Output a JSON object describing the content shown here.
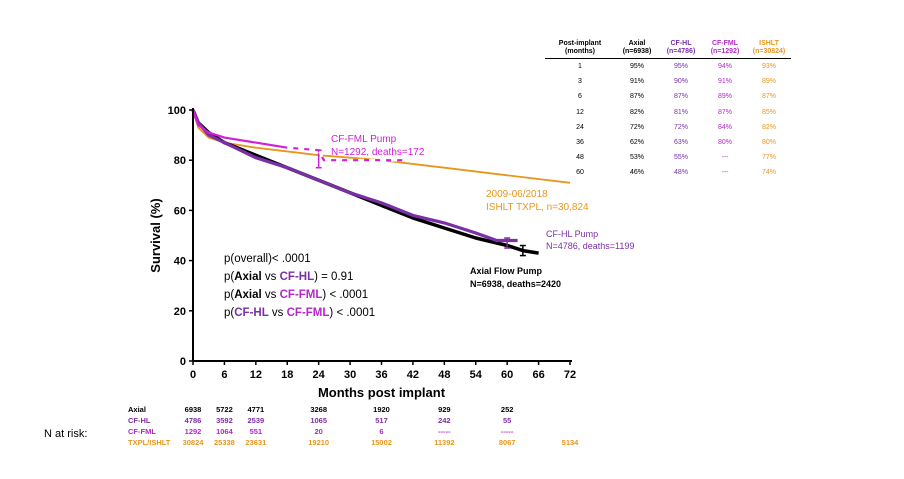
{
  "chart_data": {
    "type": "line",
    "title": "",
    "xlabel": "Months post implant",
    "ylabel": "Survival (%)",
    "xlim": [
      0,
      72
    ],
    "ylim": [
      0,
      100
    ],
    "xticks": [
      0,
      6,
      12,
      18,
      24,
      30,
      36,
      42,
      48,
      54,
      60,
      66,
      72
    ],
    "yticks": [
      0,
      20,
      40,
      60,
      80,
      100
    ],
    "series": [
      {
        "name": "Axial Flow Pump",
        "color": "#000000",
        "x": [
          0,
          1,
          3,
          6,
          12,
          18,
          24,
          30,
          36,
          42,
          48,
          54,
          60,
          63,
          66
        ],
        "y": [
          100,
          95,
          91,
          87,
          82,
          77,
          72,
          67,
          62,
          57,
          53,
          49,
          46,
          44,
          43
        ]
      },
      {
        "name": "CF-HL Pump",
        "color": "#7B2FA6",
        "x": [
          0,
          1,
          3,
          6,
          12,
          18,
          24,
          30,
          36,
          42,
          48,
          54,
          58,
          62
        ],
        "y": [
          100,
          95,
          90,
          87,
          81,
          77,
          72,
          67,
          63,
          58,
          55,
          51,
          48,
          48
        ]
      },
      {
        "name": "CF-FML Pump",
        "color": "#D020D8",
        "x": [
          0,
          1,
          3,
          6,
          12,
          18,
          24,
          25,
          30,
          35,
          40
        ],
        "y": [
          100,
          94,
          91,
          89,
          87,
          85,
          84,
          80,
          80,
          80,
          80
        ]
      },
      {
        "name": "ISHLT TXPL",
        "color": "#E8961E",
        "x": [
          0,
          1,
          3,
          6,
          12,
          24,
          36,
          48,
          60,
          72
        ],
        "y": [
          100,
          93,
          89,
          87,
          85,
          82,
          80,
          77,
          74,
          71
        ]
      }
    ],
    "annotations": {
      "fml_line1": "CF-FML Pump",
      "fml_line2": "N=1292, deaths=172",
      "ishlt_line1": "2009-06/2018",
      "ishlt_line2": "ISHLT TXPL, n=30,824",
      "hl_line1": "CF-HL Pump",
      "hl_line2": "N=4786, deaths=1199",
      "axial_line1": "Axial Flow Pump",
      "axial_line2": "N=6938, deaths=2420",
      "stats": [
        {
          "prefix": "p(overall)< .0001",
          "a": "",
          "vs": "",
          "b": "",
          "suffix": ""
        },
        {
          "prefix": "p(",
          "a": "Axial",
          "vs": " vs ",
          "b": "CF-HL",
          "suffix": ") = 0.91",
          "a_color": "#000000",
          "b_color": "#7B2FA6"
        },
        {
          "prefix": "p(",
          "a": "Axial",
          "vs": " vs ",
          "b": "CF-FML",
          "suffix": ") < .0001",
          "a_color": "#000000",
          "b_color": "#B428C8"
        },
        {
          "prefix": "p(",
          "a": "CF-HL",
          "vs": " vs ",
          "b": "CF-FML",
          "suffix": ") < .0001",
          "a_color": "#7B2FA6",
          "b_color": "#B428C8"
        }
      ]
    }
  },
  "survival_table": {
    "headers": [
      {
        "line1": "Post-implant",
        "line2": "(months)",
        "cls": "c-axial"
      },
      {
        "line1": "Axial",
        "line2": "(n=6938)",
        "cls": "c-axial"
      },
      {
        "line1": "CF-HL",
        "line2": "(n=4786)",
        "cls": "c-hl"
      },
      {
        "line1": "CF-FML",
        "line2": "(n=1292)",
        "cls": "c-fml"
      },
      {
        "line1": "ISHLT",
        "line2": "(n=30824)",
        "cls": "c-ishlt"
      }
    ],
    "rows": [
      [
        "1",
        "95%",
        "95%",
        "94%",
        "93%"
      ],
      [
        "3",
        "91%",
        "90%",
        "91%",
        "89%"
      ],
      [
        "6",
        "87%",
        "87%",
        "89%",
        "87%"
      ],
      [
        "12",
        "82%",
        "81%",
        "87%",
        "85%"
      ],
      [
        "24",
        "72%",
        "72%",
        "84%",
        "82%"
      ],
      [
        "36",
        "62%",
        "63%",
        "80%",
        "80%"
      ],
      [
        "48",
        "53%",
        "55%",
        "---",
        "77%"
      ],
      [
        "60",
        "46%",
        "48%",
        "---",
        "74%"
      ]
    ]
  },
  "risk_table": {
    "label": "N at risk:",
    "months": [
      0,
      6,
      12,
      24,
      36,
      48,
      60,
      72
    ],
    "rows": [
      {
        "name": "Axial",
        "cls": "c-axial",
        "values": [
          "6938",
          "5722",
          "4771",
          "3268",
          "1920",
          "929",
          "252",
          ""
        ]
      },
      {
        "name": "CF-HL",
        "cls": "c-hl",
        "values": [
          "4786",
          "3592",
          "2539",
          "1065",
          "517",
          "242",
          "55",
          ""
        ]
      },
      {
        "name": "CF-FML",
        "cls": "c-fml",
        "values": [
          "1292",
          "1064",
          "551",
          "20",
          "6",
          "-----",
          "-----",
          ""
        ]
      },
      {
        "name": "TXPL/ISHLT",
        "cls": "c-ishlt",
        "values": [
          "30824",
          "25338",
          "23631",
          "19210",
          "15002",
          "11392",
          "8067",
          "5134"
        ]
      }
    ]
  }
}
